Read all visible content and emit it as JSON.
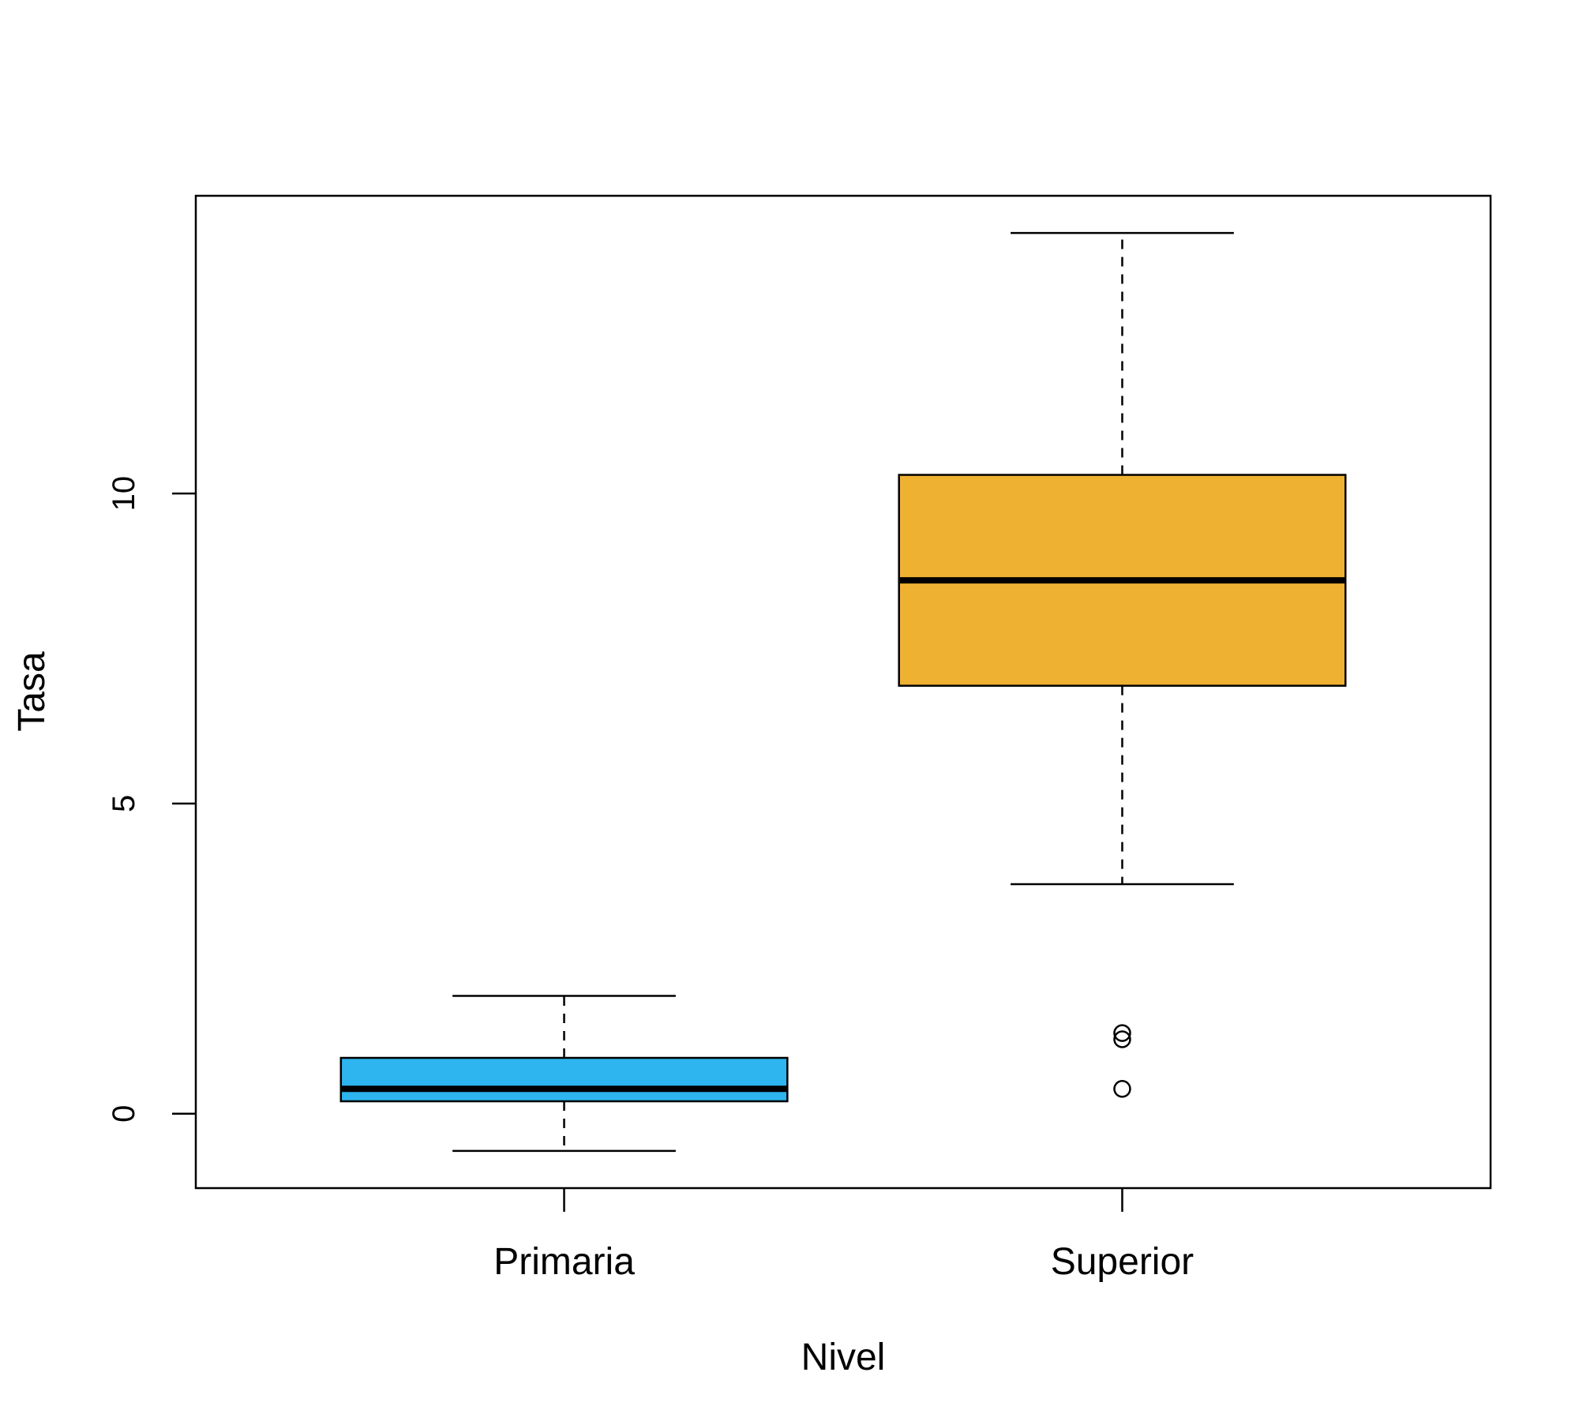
{
  "chart_data": {
    "type": "boxplot",
    "title": "",
    "xlabel": "Nivel",
    "ylabel": "Tasa",
    "ylim": [
      -1.2,
      14.8
    ],
    "yticks": [
      0,
      5,
      10
    ],
    "grid": false,
    "boxes": [
      {
        "category": "Primaria",
        "color": "#2EB4EE",
        "whisker_low": -0.6,
        "q1": 0.2,
        "median": 0.4,
        "q3": 0.9,
        "whisker_high": 1.9,
        "outliers": []
      },
      {
        "category": "Superior",
        "color": "#EEB132",
        "whisker_low": 3.7,
        "q1": 6.9,
        "median": 8.6,
        "q3": 10.3,
        "whisker_high": 14.2,
        "outliers": [
          0.4,
          1.2,
          1.3
        ]
      }
    ]
  }
}
